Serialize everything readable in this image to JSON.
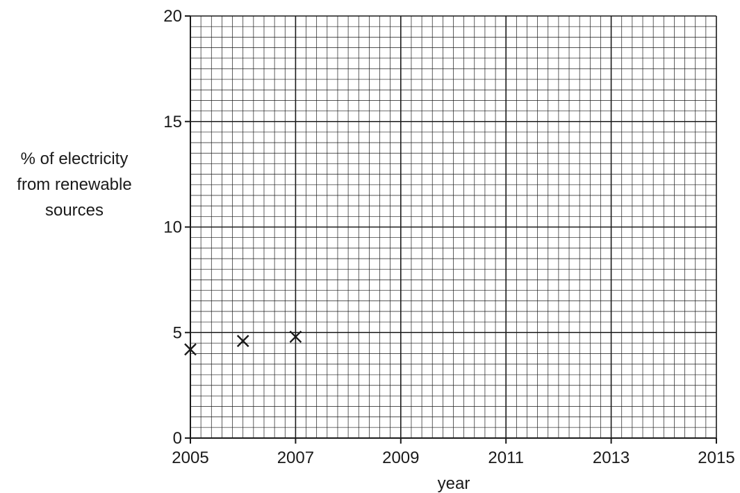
{
  "chart_data": {
    "type": "scatter",
    "xlabel": "year",
    "ylabel_lines": [
      "% of electricity",
      "from renewable",
      "sources"
    ],
    "xlim": [
      2005,
      2015
    ],
    "ylim": [
      0,
      20
    ],
    "x_ticks": [
      2005,
      2007,
      2009,
      2011,
      2013,
      2015
    ],
    "y_ticks": [
      0,
      5,
      10,
      15,
      20
    ],
    "grid": true,
    "marker": "x",
    "points": [
      {
        "x": 2005,
        "y": 4.2
      },
      {
        "x": 2006,
        "y": 4.6
      },
      {
        "x": 2007,
        "y": 4.8
      }
    ]
  }
}
